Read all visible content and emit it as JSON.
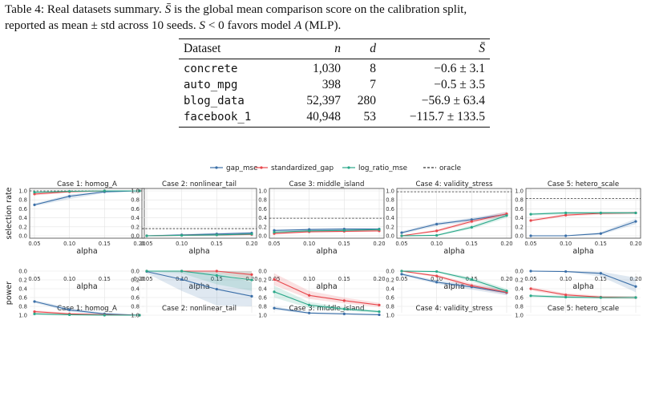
{
  "caption": {
    "label": "Table 4:",
    "text1": " Real datasets summary. ",
    "sbar_symbol": "S̄",
    "text2": " is the global mean comparison score on the calibration split,",
    "text3": "reported as mean ± std across 10 seeds. ",
    "s_symbol": "S",
    "text4": " < 0 favors model ",
    "model_symbol": "A",
    "text5": " (MLP)."
  },
  "table": {
    "headers": [
      "Dataset",
      "n",
      "d",
      "S̄"
    ],
    "rows": [
      [
        "concrete",
        "1,030",
        "8",
        "−0.6 ± 3.1"
      ],
      [
        "auto_mpg",
        "398",
        "7",
        "−0.5 ± 3.5"
      ],
      [
        "blog_data",
        "52,397",
        "280",
        "−56.9 ± 63.4"
      ],
      [
        "facebook_1",
        "40,948",
        "53",
        "−115.7 ± 133.5"
      ]
    ]
  },
  "chart_data": {
    "type": "line",
    "legend": {
      "placement": "top-center",
      "entries": [
        {
          "name": "gap_mse",
          "color": "#3b6fa8",
          "style": "solid"
        },
        {
          "name": "standardized_gap",
          "color": "#e8474c",
          "style": "solid"
        },
        {
          "name": "log_ratio_mse",
          "color": "#2aa889",
          "style": "solid"
        },
        {
          "name": "oracle",
          "color": "#333333",
          "style": "dashed"
        }
      ]
    },
    "x": [
      0.05,
      0.1,
      0.15,
      0.2
    ],
    "x_ticks": [
      "0.05",
      "0.10",
      "0.15",
      "0.20"
    ],
    "y_ticks": [
      "0.0",
      "0.2",
      "0.4",
      "0.6",
      "0.8",
      "1.0"
    ],
    "ylim": [
      0,
      1
    ],
    "rows": [
      {
        "ylabel": "selection rate",
        "xlabel": "alpha",
        "panels": [
          {
            "title": "Case 1: homog_A",
            "oracle": 1.0,
            "series": {
              "gap_mse": {
                "values": [
                  0.69,
                  0.88,
                  0.98,
                  1.0
                ],
                "lo": [
                  0.66,
                  0.82,
                  0.95,
                  0.99
                ],
                "hi": [
                  0.72,
                  0.92,
                  1.0,
                  1.0
                ]
              },
              "standardized_gap": {
                "values": [
                  0.93,
                  0.98,
                  1.0,
                  1.0
                ],
                "lo": [
                  0.9,
                  0.96,
                  0.99,
                  1.0
                ],
                "hi": [
                  0.96,
                  1.0,
                  1.0,
                  1.0
                ]
              },
              "log_ratio_mse": {
                "values": [
                  0.97,
                  0.99,
                  1.0,
                  1.0
                ],
                "lo": [
                  0.95,
                  0.98,
                  1.0,
                  1.0
                ],
                "hi": [
                  0.99,
                  1.0,
                  1.0,
                  1.0
                ]
              }
            }
          },
          {
            "title": "Case 2: nonlinear_tail",
            "oracle": 0.16,
            "series": {
              "gap_mse": {
                "values": [
                  0.0,
                  0.02,
                  0.04,
                  0.06
                ],
                "lo": [
                  0.0,
                  0.0,
                  0.02,
                  0.03
                ],
                "hi": [
                  0.01,
                  0.04,
                  0.07,
                  0.09
                ]
              },
              "standardized_gap": {
                "values": [
                  0.0,
                  0.01,
                  0.02,
                  0.03
                ],
                "lo": [
                  0.0,
                  0.0,
                  0.0,
                  0.01
                ],
                "hi": [
                  0.01,
                  0.02,
                  0.04,
                  0.05
                ]
              },
              "log_ratio_mse": {
                "values": [
                  0.0,
                  0.01,
                  0.02,
                  0.04
                ],
                "lo": [
                  0.0,
                  0.0,
                  0.0,
                  0.02
                ],
                "hi": [
                  0.01,
                  0.02,
                  0.04,
                  0.06
                ]
              }
            }
          },
          {
            "title": "Case 3: middle_island",
            "oracle": 0.39,
            "series": {
              "gap_mse": {
                "values": [
                  0.12,
                  0.14,
                  0.15,
                  0.15
                ],
                "lo": [
                  0.1,
                  0.12,
                  0.13,
                  0.13
                ],
                "hi": [
                  0.14,
                  0.16,
                  0.17,
                  0.17
                ]
              },
              "standardized_gap": {
                "values": [
                  0.05,
                  0.09,
                  0.1,
                  0.11
                ],
                "lo": [
                  0.03,
                  0.07,
                  0.08,
                  0.09
                ],
                "hi": [
                  0.07,
                  0.11,
                  0.12,
                  0.13
                ]
              },
              "log_ratio_mse": {
                "values": [
                  0.08,
                  0.11,
                  0.12,
                  0.14
                ],
                "lo": [
                  0.06,
                  0.09,
                  0.1,
                  0.12
                ],
                "hi": [
                  0.1,
                  0.13,
                  0.14,
                  0.16
                ]
              }
            }
          },
          {
            "title": "Case 4: validity_stress",
            "oracle": 0.98,
            "series": {
              "gap_mse": {
                "values": [
                  0.07,
                  0.26,
                  0.36,
                  0.48
                ],
                "lo": [
                  0.04,
                  0.22,
                  0.32,
                  0.43
                ],
                "hi": [
                  0.1,
                  0.3,
                  0.4,
                  0.53
                ]
              },
              "standardized_gap": {
                "values": [
                  0.0,
                  0.11,
                  0.32,
                  0.49
                ],
                "lo": [
                  0.0,
                  0.08,
                  0.28,
                  0.44
                ],
                "hi": [
                  0.01,
                  0.14,
                  0.36,
                  0.54
                ]
              },
              "log_ratio_mse": {
                "values": [
                  0.0,
                  0.01,
                  0.19,
                  0.45
                ],
                "lo": [
                  0.0,
                  0.0,
                  0.15,
                  0.4
                ],
                "hi": [
                  0.01,
                  0.03,
                  0.23,
                  0.5
                ]
              }
            }
          },
          {
            "title": "Case 5: hetero_scale",
            "oracle": 0.83,
            "series": {
              "gap_mse": {
                "values": [
                  0.0,
                  0.0,
                  0.05,
                  0.32
                ],
                "lo": [
                  0.0,
                  0.0,
                  0.02,
                  0.26
                ],
                "hi": [
                  0.01,
                  0.01,
                  0.08,
                  0.38
                ]
              },
              "standardized_gap": {
                "values": [
                  0.34,
                  0.46,
                  0.5,
                  0.51
                ],
                "lo": [
                  0.31,
                  0.43,
                  0.47,
                  0.48
                ],
                "hi": [
                  0.37,
                  0.49,
                  0.53,
                  0.54
                ]
              },
              "log_ratio_mse": {
                "values": [
                  0.48,
                  0.51,
                  0.51,
                  0.51
                ],
                "lo": [
                  0.45,
                  0.48,
                  0.48,
                  0.48
                ],
                "hi": [
                  0.51,
                  0.54,
                  0.54,
                  0.54
                ]
              }
            }
          }
        ]
      },
      {
        "ylabel": "power",
        "xlabel": "alpha",
        "panels": [
          {
            "title": "Case 1: homog_A",
            "series": {
              "gap_mse": {
                "values": [
                  0.69,
                  0.88,
                  0.97,
                  1.0
                ],
                "lo": [
                  0.66,
                  0.83,
                  0.95,
                  0.99
                ],
                "hi": [
                  0.72,
                  0.92,
                  0.99,
                  1.0
                ]
              },
              "standardized_gap": {
                "values": [
                  0.92,
                  0.97,
                  0.99,
                  1.0
                ],
                "lo": [
                  0.89,
                  0.95,
                  0.98,
                  1.0
                ],
                "hi": [
                  0.95,
                  0.99,
                  1.0,
                  1.0
                ]
              },
              "log_ratio_mse": {
                "values": [
                  0.97,
                  0.99,
                  1.0,
                  1.0
                ],
                "lo": [
                  0.95,
                  0.98,
                  1.0,
                  1.0
                ],
                "hi": [
                  0.99,
                  1.0,
                  1.0,
                  1.0
                ]
              }
            }
          },
          {
            "title": "Case 2: nonlinear_tail",
            "series": {
              "gap_mse": {
                "values": [
                  0.01,
                  0.19,
                  0.41,
                  0.57
                ],
                "lo": [
                  0.0,
                  0.0,
                  0.05,
                  0.25
                ],
                "hi": [
                  0.05,
                  0.45,
                  0.78,
                  0.8
                ]
              },
              "standardized_gap": {
                "values": [
                  0.0,
                  0.0,
                  0.0,
                  0.08
                ],
                "lo": [
                  0.0,
                  0.0,
                  0.0,
                  0.0
                ],
                "hi": [
                  0.01,
                  0.02,
                  0.05,
                  0.2
                ]
              },
              "log_ratio_mse": {
                "values": [
                  0.0,
                  0.0,
                  0.1,
                  0.2
                ],
                "lo": [
                  0.0,
                  0.0,
                  0.0,
                  0.0
                ],
                "hi": [
                  0.01,
                  0.05,
                  0.3,
                  0.45
                ]
              }
            }
          },
          {
            "title": "Case 3: middle_island",
            "series": {
              "gap_mse": {
                "values": [
                  0.84,
                  0.95,
                  0.97,
                  0.99
                ],
                "lo": [
                  0.8,
                  0.93,
                  0.96,
                  0.98
                ],
                "hi": [
                  0.88,
                  0.97,
                  0.98,
                  1.0
                ]
              },
              "standardized_gap": {
                "values": [
                  0.19,
                  0.55,
                  0.67,
                  0.77
                ],
                "lo": [
                  0.05,
                  0.45,
                  0.6,
                  0.72
                ],
                "hi": [
                  0.32,
                  0.63,
                  0.73,
                  0.82
                ]
              },
              "log_ratio_mse": {
                "values": [
                  0.47,
                  0.77,
                  0.86,
                  0.92
                ],
                "lo": [
                  0.33,
                  0.7,
                  0.82,
                  0.89
                ],
                "hi": [
                  0.6,
                  0.84,
                  0.9,
                  0.95
                ]
              }
            }
          },
          {
            "title": "Case 4: validity_stress",
            "series": {
              "gap_mse": {
                "values": [
                  0.07,
                  0.25,
                  0.36,
                  0.49
                ],
                "lo": [
                  0.04,
                  0.21,
                  0.3,
                  0.43
                ],
                "hi": [
                  0.1,
                  0.29,
                  0.42,
                  0.55
                ]
              },
              "standardized_gap": {
                "values": [
                  0.0,
                  0.11,
                  0.33,
                  0.48
                ],
                "lo": [
                  0.0,
                  0.08,
                  0.28,
                  0.43
                ],
                "hi": [
                  0.01,
                  0.14,
                  0.38,
                  0.53
                ]
              },
              "log_ratio_mse": {
                "values": [
                  0.0,
                  0.01,
                  0.19,
                  0.45
                ],
                "lo": [
                  0.0,
                  0.0,
                  0.14,
                  0.4
                ],
                "hi": [
                  0.01,
                  0.03,
                  0.24,
                  0.5
                ]
              }
            }
          },
          {
            "title": "Case 5: hetero_scale",
            "series": {
              "gap_mse": {
                "values": [
                  0.0,
                  0.01,
                  0.05,
                  0.35
                ],
                "lo": [
                  0.0,
                  0.0,
                  0.01,
                  0.15
                ],
                "hi": [
                  0.01,
                  0.02,
                  0.12,
                  0.48
                ]
              },
              "standardized_gap": {
                "values": [
                  0.4,
                  0.54,
                  0.59,
                  0.6
                ],
                "lo": [
                  0.36,
                  0.5,
                  0.56,
                  0.57
                ],
                "hi": [
                  0.44,
                  0.58,
                  0.62,
                  0.63
                ]
              },
              "log_ratio_mse": {
                "values": [
                  0.56,
                  0.59,
                  0.6,
                  0.6
                ],
                "lo": [
                  0.53,
                  0.56,
                  0.57,
                  0.57
                ],
                "hi": [
                  0.59,
                  0.62,
                  0.63,
                  0.63
                ]
              }
            }
          }
        ]
      }
    ]
  }
}
